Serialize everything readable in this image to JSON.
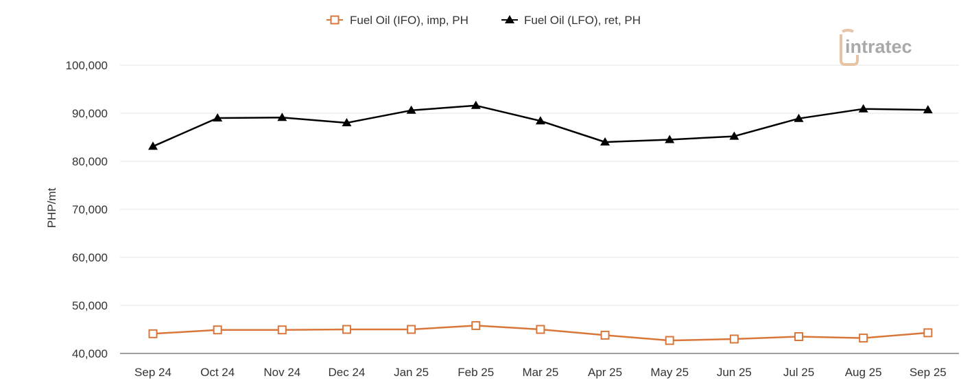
{
  "chart_data": {
    "type": "line",
    "categories": [
      "Sep 24",
      "Oct 24",
      "Nov 24",
      "Dec 24",
      "Jan 25",
      "Feb 25",
      "Mar 25",
      "Apr 25",
      "May 25",
      "Jun 25",
      "Jul 25",
      "Aug 25",
      "Sep 25"
    ],
    "series": [
      {
        "name": "Fuel Oil (IFO), imp, PH",
        "color": "#d9773a",
        "marker": "open-square",
        "values": [
          44100,
          44900,
          44900,
          45000,
          45000,
          45800,
          45000,
          43800,
          42700,
          43000,
          43500,
          43200,
          44300
        ]
      },
      {
        "name": "Fuel Oil (LFO), ret, PH",
        "color": "#000000",
        "marker": "filled-triangle",
        "values": [
          83100,
          89000,
          89100,
          88000,
          90600,
          91600,
          88400,
          84000,
          84500,
          85200,
          88900,
          90900,
          90700
        ]
      }
    ],
    "ylabel": "PHP/mt",
    "ylim": [
      40000,
      100000
    ],
    "yticks": [
      "40,000",
      "50,000",
      "60,000",
      "70,000",
      "80,000",
      "90,000",
      "100,000"
    ],
    "ytick_values": [
      40000,
      50000,
      60000,
      70000,
      80000,
      90000,
      100000
    ],
    "grid": "horizontal",
    "legend_position": "top-center"
  },
  "legend": {
    "ifo_label": "Fuel Oil (IFO), imp, PH",
    "lfo_label": "Fuel Oil (LFO), ret, PH"
  },
  "axis": {
    "ylabel": "PHP/mt"
  },
  "logo": {
    "text": "intratec",
    "accent_color": "#e8c4a6",
    "text_color": "#a9a9a9"
  }
}
